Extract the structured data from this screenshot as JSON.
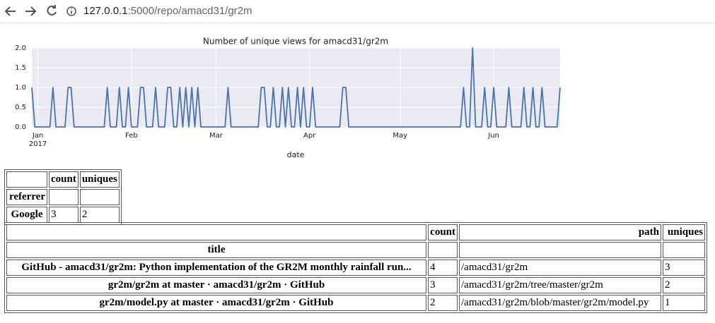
{
  "browser": {
    "url_host": "127.0.0.1",
    "url_rest": ":5000/repo/amacd31/gr2m"
  },
  "chart_data": {
    "type": "line",
    "title": "Number of unique views for amacd31/gr2m",
    "x_label": "date",
    "color": "#4c72b0",
    "values": [
      1,
      0,
      0,
      0,
      0,
      0,
      0,
      1,
      0,
      0,
      0,
      0,
      1,
      1,
      0,
      0,
      0,
      0,
      0,
      0,
      0,
      0,
      0,
      0,
      0,
      1,
      0,
      0,
      0,
      1,
      0,
      0,
      1,
      0,
      0,
      0,
      1,
      1,
      0,
      0,
      0,
      1,
      0,
      0,
      0,
      1,
      1,
      0,
      0,
      1,
      0,
      1,
      0,
      1,
      0,
      1,
      0,
      0,
      0,
      0,
      0,
      0,
      0,
      0,
      0,
      1,
      0,
      0,
      0,
      0,
      0,
      0,
      0,
      0,
      0,
      0,
      1,
      1,
      0,
      0,
      1,
      0,
      0,
      1,
      0,
      1,
      0,
      0,
      1,
      0,
      1,
      0,
      0,
      1,
      0,
      0,
      0,
      0,
      0,
      0,
      0,
      0,
      0,
      1,
      1,
      0,
      0,
      0,
      0,
      0,
      0,
      0,
      0,
      0,
      0,
      0,
      0,
      0,
      0,
      0,
      0,
      0,
      0,
      0,
      0,
      0,
      0,
      0,
      0,
      0,
      0,
      0,
      0,
      0,
      0,
      0,
      0,
      0,
      0,
      0,
      0,
      0,
      0,
      1,
      0,
      0,
      2,
      0,
      0,
      0,
      1,
      0,
      0,
      1,
      0,
      0,
      0,
      0,
      1,
      0,
      0,
      0,
      0,
      1,
      0,
      0,
      1,
      0,
      0,
      1,
      0,
      0,
      0,
      0,
      0,
      1
    ],
    "xlim": [
      0,
      175
    ],
    "xticks": [
      {
        "value": 2,
        "label": "Jan"
      },
      {
        "value": 33,
        "label": "Feb"
      },
      {
        "value": 61,
        "label": "Mar"
      },
      {
        "value": 92,
        "label": "Apr"
      },
      {
        "value": 122,
        "label": "May"
      },
      {
        "value": 153,
        "label": "Jun"
      }
    ],
    "xtick_year": "2017",
    "ylim": [
      0,
      2
    ],
    "yticks": [
      {
        "value": 0,
        "label": "0.0"
      },
      {
        "value": 0.5,
        "label": "0.5"
      },
      {
        "value": 1,
        "label": "1.0"
      },
      {
        "value": 1.5,
        "label": "1.5"
      },
      {
        "value": 2,
        "label": "2.0"
      }
    ],
    "grid": true
  },
  "referrers": {
    "columns": [
      "count",
      "uniques"
    ],
    "index_name": "referrer",
    "rows": [
      {
        "label": "Google",
        "count": 3,
        "uniques": 2
      }
    ]
  },
  "paths": {
    "columns": [
      "count",
      "path",
      "uniques"
    ],
    "index_name": "title",
    "rows": [
      {
        "title": "GitHub - amacd31/gr2m: Python implementation of the GR2M monthly rainfall run...",
        "count": 4,
        "path": "/amacd31/gr2m",
        "uniques": 3
      },
      {
        "title": "gr2m/gr2m at master · amacd31/gr2m · GitHub",
        "count": 3,
        "path": "/amacd31/gr2m/tree/master/gr2m",
        "uniques": 2
      },
      {
        "title": "gr2m/model.py at master · amacd31/gr2m · GitHub",
        "count": 2,
        "path": "/amacd31/gr2m/blob/master/gr2m/model.py",
        "uniques": 1
      }
    ]
  }
}
